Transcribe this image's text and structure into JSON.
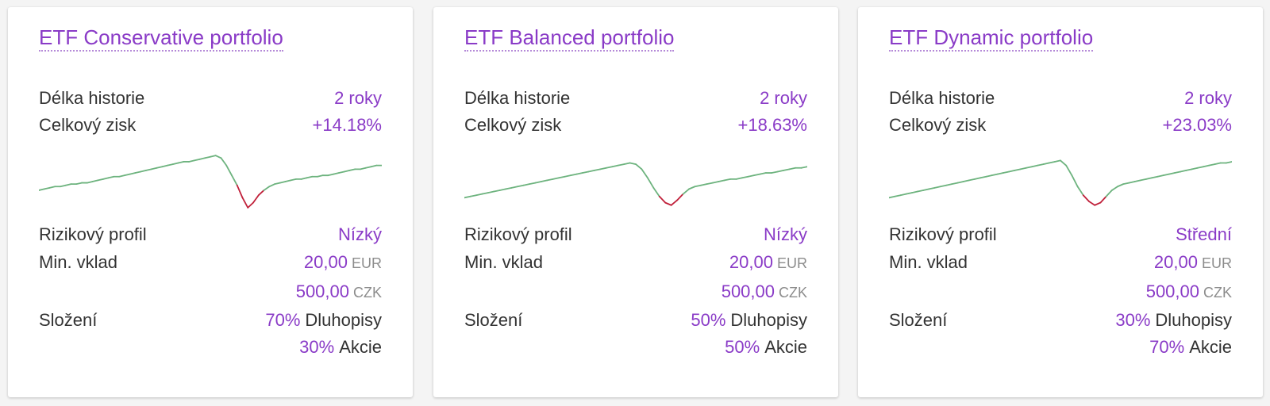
{
  "labels": {
    "history": "Délka historie",
    "gain": "Celkový zisk",
    "risk": "Rizikový profil",
    "min_deposit": "Min. vklad",
    "composition": "Složení"
  },
  "colors": {
    "accent": "#8a3bc7",
    "sparkline_up": "#6db37e",
    "sparkline_down": "#c0203a"
  },
  "portfolios": [
    {
      "title": "ETF Conservative portfolio",
      "history": "2 roky",
      "gain": "+14.18%",
      "risk": "Nízký",
      "min_deposit": [
        {
          "amount": "20,00",
          "currency": "EUR"
        },
        {
          "amount": "500,00",
          "currency": "CZK"
        }
      ],
      "composition": [
        {
          "pct": "70%",
          "asset": "Dluhopisy"
        },
        {
          "pct": "30%",
          "asset": "Akcie"
        }
      ],
      "sparkline": {
        "values": [
          0,
          1,
          2,
          3,
          3,
          4,
          5,
          5,
          6,
          6,
          7,
          8,
          9,
          10,
          11,
          11,
          12,
          13,
          14,
          15,
          16,
          17,
          18,
          19,
          20,
          21,
          22,
          23,
          23,
          24,
          25,
          26,
          27,
          28,
          26,
          20,
          12,
          4,
          -6,
          -14,
          -10,
          -4,
          0,
          3,
          5,
          6,
          7,
          8,
          9,
          9,
          10,
          11,
          11,
          12,
          12,
          13,
          14,
          15,
          16,
          17,
          17,
          18,
          19,
          20,
          20
        ],
        "min": -16,
        "max": 30
      }
    },
    {
      "title": "ETF Balanced portfolio",
      "history": "2 roky",
      "gain": "+18.63%",
      "risk": "Nízký",
      "min_deposit": [
        {
          "amount": "20,00",
          "currency": "EUR"
        },
        {
          "amount": "500,00",
          "currency": "CZK"
        }
      ],
      "composition": [
        {
          "pct": "50%",
          "asset": "Dluhopisy"
        },
        {
          "pct": "50%",
          "asset": "Akcie"
        }
      ],
      "sparkline": {
        "values": [
          0,
          1,
          2,
          3,
          4,
          5,
          6,
          7,
          8,
          9,
          10,
          11,
          12,
          13,
          14,
          15,
          16,
          17,
          18,
          19,
          20,
          21,
          22,
          23,
          24,
          25,
          26,
          27,
          28,
          27,
          23,
          16,
          8,
          1,
          -4,
          -6,
          -2,
          3,
          7,
          9,
          10,
          11,
          12,
          13,
          14,
          15,
          15,
          16,
          17,
          18,
          19,
          20,
          20,
          21,
          22,
          23,
          24,
          24,
          25
        ],
        "min": -10,
        "max": 36
      }
    },
    {
      "title": "ETF Dynamic portfolio",
      "history": "2 roky",
      "gain": "+23.03%",
      "risk": "Střední",
      "min_deposit": [
        {
          "amount": "20,00",
          "currency": "EUR"
        },
        {
          "amount": "500,00",
          "currency": "CZK"
        }
      ],
      "composition": [
        {
          "pct": "30%",
          "asset": "Dluhopisy"
        },
        {
          "pct": "70%",
          "asset": "Akcie"
        }
      ],
      "sparkline": {
        "values": [
          0,
          1,
          2,
          3,
          4,
          5,
          6,
          7,
          8,
          9,
          10,
          11,
          12,
          13,
          14,
          15,
          16,
          17,
          18,
          19,
          20,
          21,
          22,
          23,
          24,
          25,
          26,
          27,
          28,
          29,
          30,
          26,
          18,
          9,
          2,
          -3,
          -6,
          -4,
          1,
          6,
          9,
          11,
          12,
          13,
          14,
          15,
          16,
          17,
          18,
          19,
          20,
          21,
          22,
          23,
          24,
          25,
          26,
          27,
          28,
          28,
          29
        ],
        "min": -10,
        "max": 36
      }
    }
  ]
}
